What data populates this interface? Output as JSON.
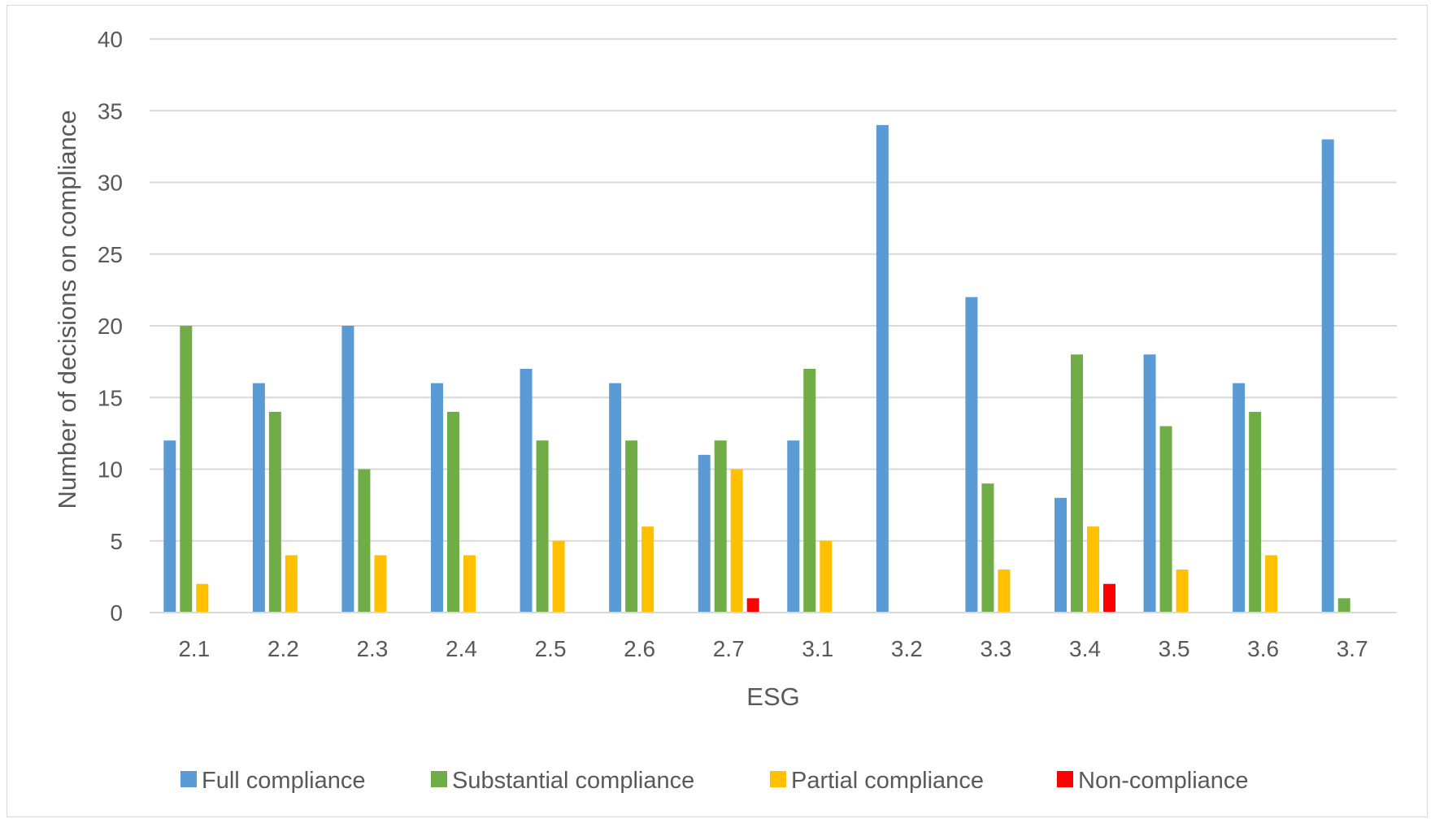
{
  "chart_data": {
    "type": "bar",
    "title": "",
    "xlabel": "ESG",
    "ylabel": "Number of decisions on compliance",
    "ylim": [
      0,
      40
    ],
    "yticks": [
      0,
      5,
      10,
      15,
      20,
      25,
      30,
      35,
      40
    ],
    "grid": true,
    "legend_position": "bottom",
    "categories": [
      "2.1",
      "2.2",
      "2.3",
      "2.4",
      "2.5",
      "2.6",
      "2.7",
      "3.1",
      "3.2",
      "3.3",
      "3.4",
      "3.5",
      "3.6",
      "3.7"
    ],
    "series": [
      {
        "name": "Full compliance",
        "color": "#5b9bd5",
        "values": [
          12,
          16,
          20,
          16,
          17,
          16,
          11,
          12,
          34,
          22,
          8,
          18,
          16,
          33
        ]
      },
      {
        "name": "Substantial compliance",
        "color": "#70ad47",
        "values": [
          20,
          14,
          10,
          14,
          12,
          12,
          12,
          17,
          0,
          9,
          18,
          13,
          14,
          1
        ]
      },
      {
        "name": "Partial compliance",
        "color": "#ffc000",
        "values": [
          2,
          4,
          4,
          4,
          5,
          6,
          10,
          5,
          0,
          3,
          6,
          3,
          4,
          0
        ]
      },
      {
        "name": "Non-compliance",
        "color": "#ff0000",
        "values": [
          0,
          0,
          0,
          0,
          0,
          0,
          1,
          0,
          0,
          0,
          2,
          0,
          0,
          0
        ]
      }
    ]
  }
}
